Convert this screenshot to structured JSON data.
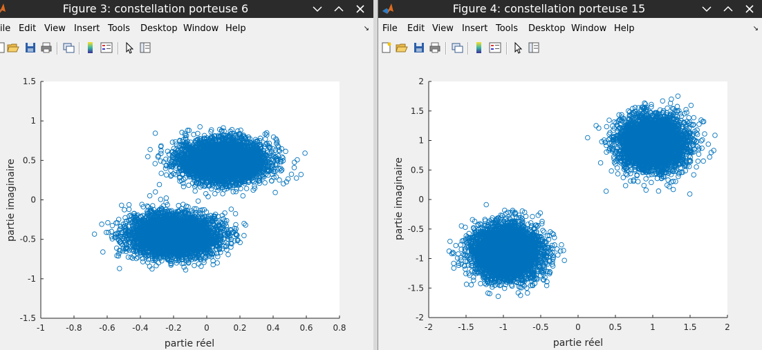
{
  "windows": [
    {
      "title": "Figure 3: constellation porteuse 6",
      "menu": [
        "ile",
        "Edit",
        "View",
        "Insert",
        "Tools",
        "Desktop",
        "Window",
        "Help"
      ],
      "menu_arrow": "↘",
      "chart_data": {
        "type": "scatter",
        "xlabel": "partie réel",
        "ylabel": "partie imaginaire",
        "xlim": [
          -1,
          0.8
        ],
        "ylim": [
          -1.5,
          1.5
        ],
        "xticks": [
          "-1",
          "-0.8",
          "-0.6",
          "-0.4",
          "-0.2",
          "0",
          "0.2",
          "0.4",
          "0.6",
          "0.8"
        ],
        "yticks": [
          "-1.5",
          "-1",
          "-0.5",
          "0",
          "0.5",
          "1",
          "1.5"
        ],
        "marker": "circle-open",
        "color": "#0072bd",
        "clusters": [
          {
            "center": [
              0.1,
              0.5
            ],
            "spread": [
              0.13,
              0.13
            ]
          },
          {
            "center": [
              -0.2,
              -0.45
            ],
            "spread": [
              0.13,
              0.13
            ]
          }
        ]
      }
    },
    {
      "title": "Figure 4: constellation porteuse 15",
      "menu": [
        "File",
        "Edit",
        "View",
        "Insert",
        "Tools",
        "Desktop",
        "Window",
        "Help"
      ],
      "menu_arrow": "↘",
      "chart_data": {
        "type": "scatter",
        "xlabel": "partie réel",
        "ylabel": "partie imaginaire",
        "xlim": [
          -2,
          2
        ],
        "ylim": [
          -2,
          2
        ],
        "xticks": [
          "-2",
          "-1.5",
          "-1",
          "-0.5",
          "0",
          "0.5",
          "1",
          "1.5",
          "2"
        ],
        "yticks": [
          "-2",
          "-1.5",
          "-1",
          "-0.5",
          "0",
          "0.5",
          "1",
          "1.5",
          "2"
        ],
        "marker": "circle-open",
        "color": "#0072bd",
        "clusters": [
          {
            "center": [
              1.0,
              0.95
            ],
            "spread": [
              0.22,
              0.22
            ]
          },
          {
            "center": [
              -0.95,
              -0.9
            ],
            "spread": [
              0.22,
              0.22
            ]
          }
        ]
      }
    }
  ],
  "colors": {
    "titlebar": "#2b2b2b",
    "marker": "#0072bd",
    "axes_bg": "#ffffff"
  },
  "icons": [
    "matlab-logo-icon",
    "minimize-icon",
    "maximize-icon",
    "close-icon",
    "new-figure-icon",
    "open-file-icon",
    "save-icon",
    "print-icon",
    "link-figure-icon",
    "colorbar-icon",
    "legend-icon",
    "pointer-icon",
    "property-inspector-icon"
  ]
}
